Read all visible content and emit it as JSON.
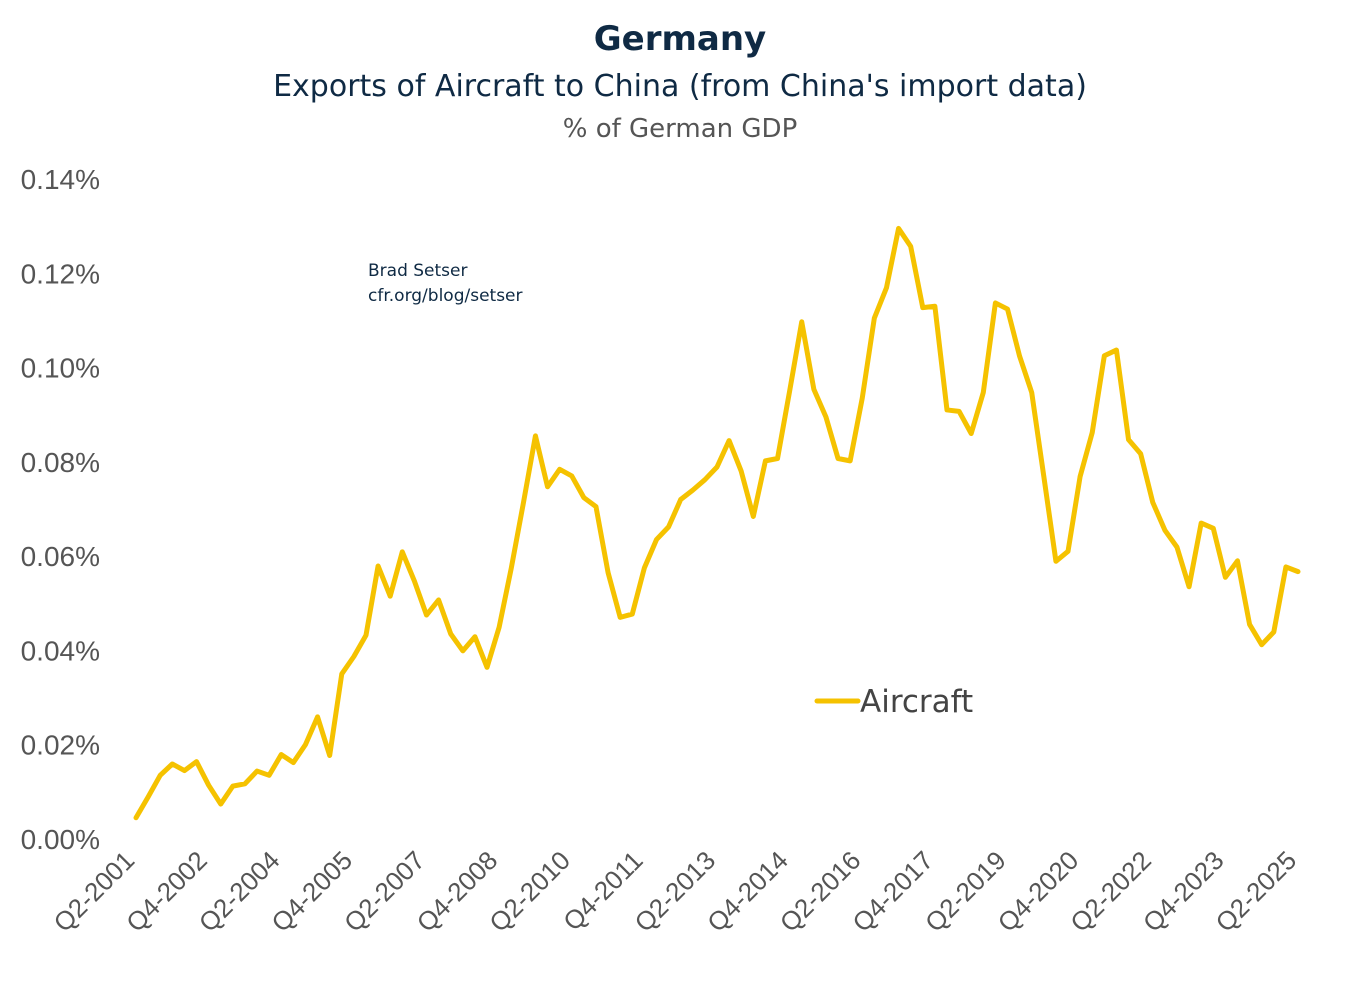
{
  "chart_data": {
    "type": "line",
    "title": "Germany",
    "subtitle": "Exports of Aircraft to China (from China's import data)",
    "ylabel": "% of German GDP",
    "xlabel": "",
    "ylim": [
      0,
      0.14
    ],
    "yticks": [
      "0.00%",
      "0.02%",
      "0.04%",
      "0.06%",
      "0.08%",
      "0.10%",
      "0.12%",
      "0.14%"
    ],
    "xtick_labels": [
      "Q2-2001",
      "Q4-2002",
      "Q2-2004",
      "Q4-2005",
      "Q2-2007",
      "Q4-2008",
      "Q2-2010",
      "Q4-2011",
      "Q2-2013",
      "Q4-2014",
      "Q2-2016",
      "Q4-2017",
      "Q2-2019",
      "Q4-2020",
      "Q2-2022",
      "Q4-2023",
      "Q2-2025"
    ],
    "grid": false,
    "legend_position": "center-right",
    "series": [
      {
        "name": "Aircraft",
        "color": "#f5c200",
        "values": [
          0.0043,
          0.0087,
          0.0133,
          0.0157,
          0.0143,
          0.0162,
          0.0112,
          0.0072,
          0.011,
          0.0115,
          0.0142,
          0.0133,
          0.0177,
          0.016,
          0.0198,
          0.0257,
          0.0175,
          0.0348,
          0.0385,
          0.043,
          0.0577,
          0.0513,
          0.0607,
          0.0545,
          0.0473,
          0.0505,
          0.0433,
          0.0397,
          0.0427,
          0.0362,
          0.0447,
          0.0572,
          0.071,
          0.0853,
          0.0745,
          0.0782,
          0.0768,
          0.0722,
          0.0703,
          0.0563,
          0.0468,
          0.0475,
          0.0573,
          0.0633,
          0.066,
          0.0718,
          0.0738,
          0.076,
          0.0787,
          0.0843,
          0.0778,
          0.0682,
          0.08,
          0.0805,
          0.0948,
          0.1095,
          0.0952,
          0.0893,
          0.0805,
          0.08,
          0.0933,
          0.1103,
          0.1167,
          0.1293,
          0.1255,
          0.1125,
          0.1128,
          0.0908,
          0.0905,
          0.0858,
          0.0945,
          0.1135,
          0.1122,
          0.1022,
          0.0945,
          0.0767,
          0.0587,
          0.0608,
          0.0767,
          0.086,
          0.1023,
          0.1035,
          0.0845,
          0.0815,
          0.0712,
          0.0653,
          0.0617,
          0.0533,
          0.0668,
          0.0657,
          0.0553,
          0.0588,
          0.0453,
          0.041,
          0.0437,
          0.0575,
          0.0565
        ]
      }
    ],
    "annotations": [
      "Brad Setser",
      "cfr.org/blog/setser"
    ]
  }
}
